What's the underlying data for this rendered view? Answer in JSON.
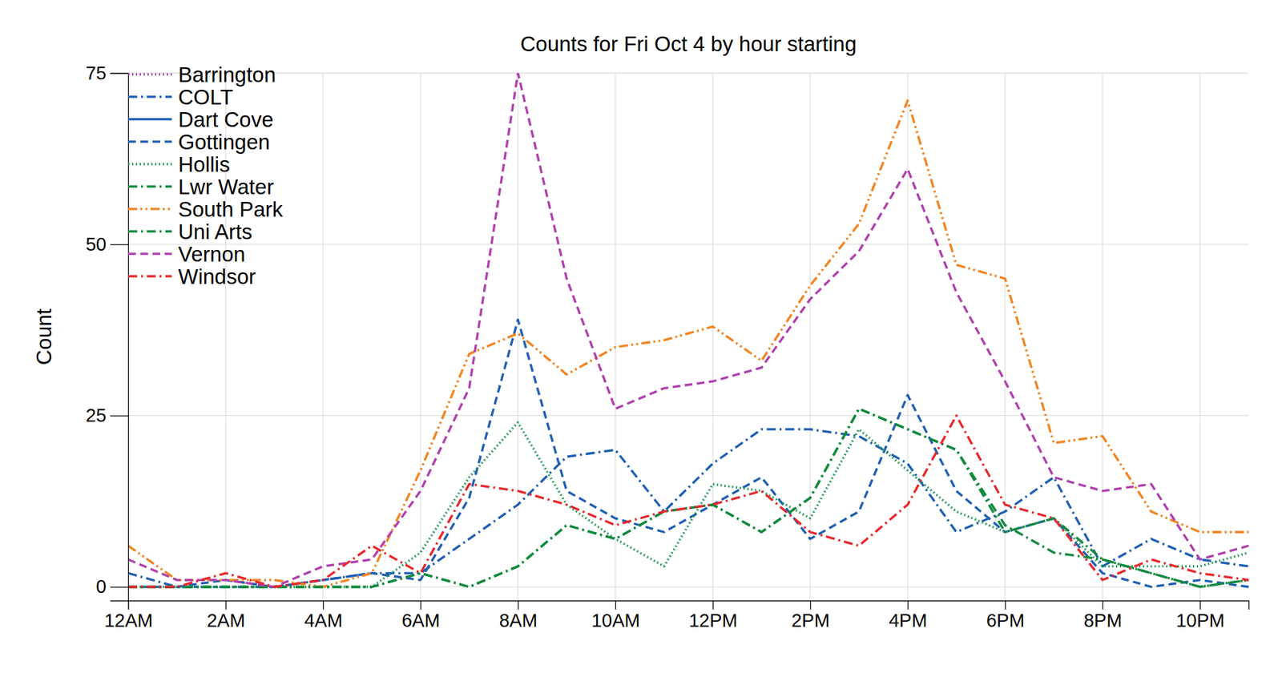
{
  "chart_data": {
    "type": "line",
    "title": "Counts for Fri Oct 4 by hour starting",
    "y_label": "Count",
    "x": [
      0,
      1,
      2,
      3,
      4,
      5,
      6,
      7,
      8,
      9,
      10,
      11,
      12,
      13,
      14,
      15,
      16,
      17,
      18,
      19,
      20,
      21,
      22,
      23
    ],
    "xlim": [
      0,
      23
    ],
    "xticks": [
      {
        "value": 0,
        "label": "12AM"
      },
      {
        "value": 2,
        "label": "2AM"
      },
      {
        "value": 4,
        "label": "4AM"
      },
      {
        "value": 6,
        "label": "6AM"
      },
      {
        "value": 8,
        "label": "8AM"
      },
      {
        "value": 10,
        "label": "10AM"
      },
      {
        "value": 12,
        "label": "12PM"
      },
      {
        "value": 14,
        "label": "2PM"
      },
      {
        "value": 16,
        "label": "4PM"
      },
      {
        "value": 18,
        "label": "6PM"
      },
      {
        "value": 20,
        "label": "8PM"
      },
      {
        "value": 22,
        "label": "10PM"
      }
    ],
    "ylim": [
      -2,
      75
    ],
    "yticks": [
      0,
      25,
      50,
      75
    ],
    "grid": true,
    "legend": "upper left",
    "series": [
      {
        "name": "Barrington",
        "color": "#a23cb0",
        "line_style": "dotted",
        "values": [
          null,
          null,
          null,
          null,
          null,
          null,
          null,
          null,
          null,
          null,
          null,
          null,
          null,
          null,
          null,
          null,
          null,
          null,
          null,
          null,
          null,
          null,
          null,
          null
        ]
      },
      {
        "name": "COLT",
        "color": "#1f5fb4",
        "line_style": "dashdot",
        "values": [
          2,
          0,
          0,
          0,
          1,
          2,
          2,
          7,
          12,
          19,
          20,
          11,
          18,
          23,
          23,
          22,
          18,
          8,
          11,
          16,
          3,
          7,
          4,
          3
        ]
      },
      {
        "name": "Dart Cove",
        "color": "#1f5fb4",
        "line_style": "solid",
        "values": [
          null,
          null,
          null,
          null,
          null,
          null,
          null,
          null,
          null,
          null,
          null,
          null,
          null,
          null,
          null,
          null,
          null,
          null,
          null,
          null,
          null,
          null,
          null,
          null
        ]
      },
      {
        "name": "Gottingen",
        "color": "#1f5fb4",
        "line_style": "dashed",
        "values": [
          0,
          0,
          1,
          0,
          1,
          2,
          1,
          13,
          39,
          14,
          10,
          8,
          12,
          16,
          7,
          11,
          28,
          14,
          8,
          10,
          2,
          0,
          1,
          0
        ]
      },
      {
        "name": "Hollis",
        "color": "#1a9850",
        "line_style": "dotted",
        "values": [
          0,
          0,
          0,
          0,
          0,
          0,
          5,
          16,
          24,
          12,
          7,
          3,
          15,
          14,
          10,
          23,
          17,
          11,
          8,
          10,
          3,
          3,
          3,
          5
        ]
      },
      {
        "name": "Lwr Water",
        "color": "#128a3e",
        "line_style": "dashdot",
        "values": [
          0,
          0,
          0,
          0,
          0,
          0,
          2,
          0,
          3,
          9,
          7,
          11,
          12,
          8,
          13,
          26,
          23,
          20,
          8,
          10,
          4,
          2,
          0,
          1
        ]
      },
      {
        "name": "South Park",
        "color": "#f28522",
        "line_style": "dashdotdot",
        "values": [
          6,
          1,
          1,
          1,
          0,
          2,
          17,
          34,
          37,
          31,
          35,
          36,
          38,
          33,
          44,
          53,
          71,
          47,
          45,
          21,
          22,
          11,
          8,
          8
        ]
      },
      {
        "name": "Uni Arts",
        "color": "#128a3e",
        "line_style": "dashdot",
        "values": [
          0,
          0,
          0,
          0,
          0,
          0,
          2,
          0,
          3,
          9,
          7,
          11,
          12,
          8,
          13,
          26,
          23,
          20,
          9,
          5,
          4,
          2,
          0,
          1
        ]
      },
      {
        "name": "Vernon",
        "color": "#b03fae",
        "line_style": "dashed",
        "values": [
          4,
          1,
          1,
          0,
          3,
          4,
          14,
          29,
          75,
          45,
          26,
          29,
          30,
          32,
          42,
          49,
          61,
          43,
          30,
          16,
          14,
          15,
          4,
          6
        ]
      },
      {
        "name": "Windsor",
        "color": "#e8282b",
        "line_style": "dashdot",
        "values": [
          0,
          0,
          2,
          0,
          1,
          6,
          2,
          15,
          14,
          12,
          9,
          11,
          12,
          14,
          8,
          6,
          12,
          25,
          12,
          10,
          1,
          4,
          2,
          1
        ]
      }
    ]
  }
}
